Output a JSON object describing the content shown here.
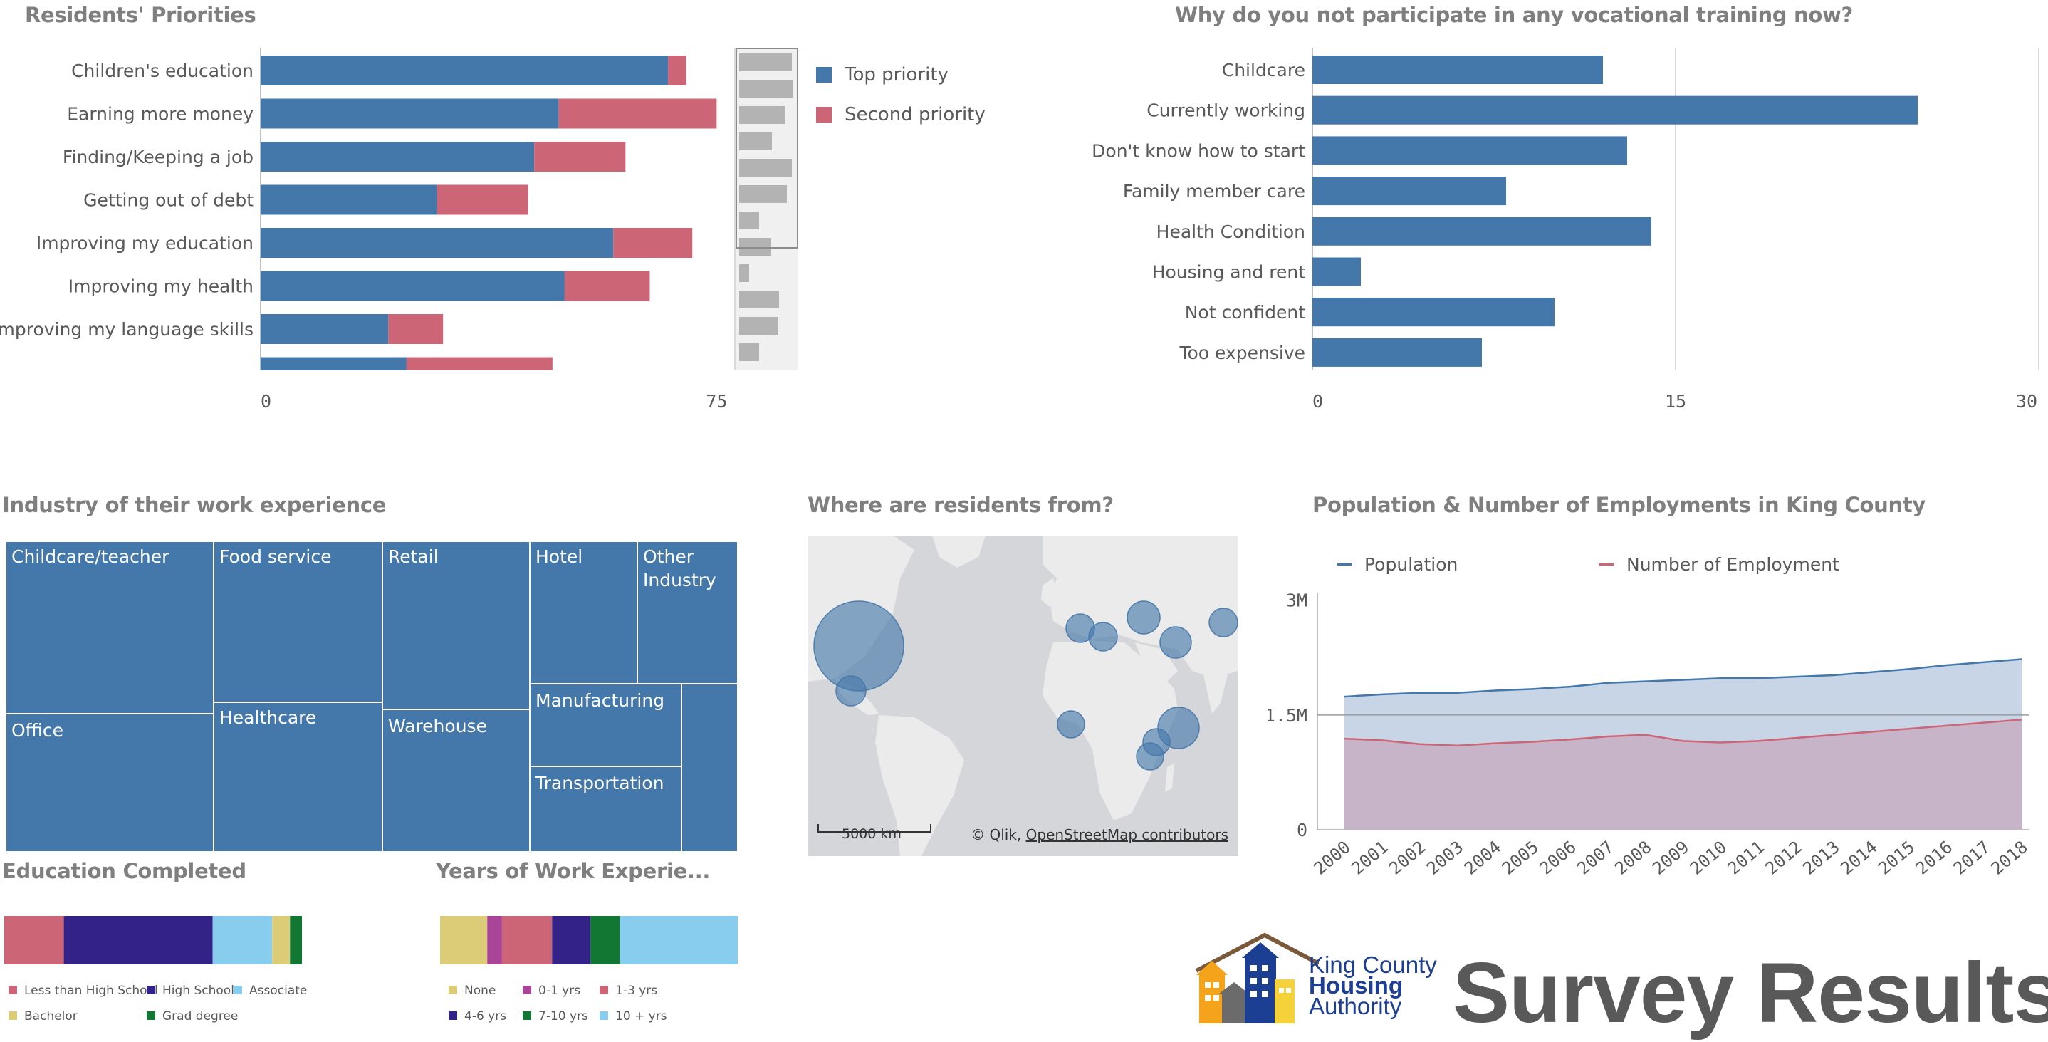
{
  "priorities": {
    "title": "Residents' Priorities",
    "legend": [
      "Top priority",
      "Second priority"
    ],
    "colors": {
      "top": "#4477aa",
      "second": "#cc6677"
    },
    "chart_data": {
      "type": "bar",
      "orientation": "horizontal",
      "stacked": true,
      "categories": [
        "Children's education",
        "Earning more money",
        "Finding/Keeping a job",
        "Getting out of debt",
        "Improving my education",
        "Improving my health",
        "Improving my language skills",
        ""
      ],
      "series": [
        {
          "name": "Top priority",
          "values": [
            67,
            49,
            45,
            29,
            58,
            50,
            21,
            24
          ]
        },
        {
          "name": "Second priority",
          "values": [
            3,
            26,
            15,
            15,
            13,
            14,
            9,
            24
          ]
        }
      ],
      "xticks": [
        "0",
        "75"
      ],
      "xlim": [
        0,
        78
      ],
      "grid": false,
      "legend_position": "right",
      "scrollbar_values": [
        74,
        76,
        64,
        46,
        74,
        67,
        28,
        45,
        14,
        56,
        55,
        28
      ]
    }
  },
  "vocational": {
    "title": "Why do you not participate in any vocational training now?",
    "color": "#4477aa",
    "chart_data": {
      "type": "bar",
      "orientation": "horizontal",
      "categories": [
        "Childcare",
        "Currently working",
        "Don't know how to start",
        "Family member care",
        "Health Condition",
        "Housing and rent",
        "Not confident",
        "Too expensive"
      ],
      "values": [
        12,
        25,
        13,
        8,
        14,
        2,
        10,
        7
      ],
      "xticks": [
        "0",
        "15",
        "30"
      ],
      "xlim": [
        0,
        30
      ],
      "grid": true
    }
  },
  "industry": {
    "title": "Industry of their work experience",
    "color": "#4477aa",
    "cells": [
      "Childcare/teacher",
      "Food service",
      "Retail",
      "Hotel",
      "Other Industry",
      "Office",
      "Healthcare",
      "Warehouse",
      "Manufacturing",
      "Transportation",
      ""
    ]
  },
  "map": {
    "title": "Where are residents from?",
    "scale": "5000 km",
    "attribution_prefix": "© Qlik,",
    "attribution_link": "OpenStreetMap contributors",
    "bubble_color": "#4477aa"
  },
  "population": {
    "title": "Population & Number of Employments in King County",
    "legend": [
      "Population",
      "Number of Employment"
    ],
    "colors": {
      "population": "#4477aa",
      "employment": "#cc6677"
    },
    "chart_data": {
      "type": "area",
      "x": [
        "2000",
        "2001",
        "2002",
        "2003",
        "2004",
        "2005",
        "2006",
        "2007",
        "2008",
        "2009",
        "2010",
        "2011",
        "2012",
        "2013",
        "2014",
        "2015",
        "2016",
        "2017",
        "2018"
      ],
      "series": [
        {
          "name": "Population",
          "values": [
            1.74,
            1.77,
            1.79,
            1.79,
            1.82,
            1.84,
            1.87,
            1.92,
            1.94,
            1.96,
            1.98,
            1.98,
            2.0,
            2.02,
            2.06,
            2.1,
            2.15,
            2.19,
            2.23
          ]
        },
        {
          "name": "Number of Employment",
          "values": [
            1.19,
            1.17,
            1.12,
            1.1,
            1.13,
            1.15,
            1.18,
            1.22,
            1.24,
            1.16,
            1.14,
            1.16,
            1.2,
            1.24,
            1.28,
            1.32,
            1.36,
            1.4,
            1.44
          ]
        }
      ],
      "yticks": [
        "0",
        "1.5M",
        "3M"
      ],
      "ylim": [
        0,
        3.1
      ],
      "unit": "M",
      "legend_position": "top"
    }
  },
  "education": {
    "title": "Education Completed",
    "chart_data": {
      "type": "bar",
      "stacked": true,
      "orientation": "horizontal",
      "series": [
        {
          "name": "Less than High School",
          "value": 20,
          "color": "#cc6677"
        },
        {
          "name": "High School",
          "value": 50,
          "color": "#332288"
        },
        {
          "name": "Associate",
          "value": 20,
          "color": "#88ccee"
        },
        {
          "name": "Bachelor",
          "value": 6,
          "color": "#ddcc77"
        },
        {
          "name": "Grad degree",
          "value": 4,
          "color": "#117733"
        }
      ]
    }
  },
  "experience": {
    "title": "Years of Work Experie...",
    "chart_data": {
      "type": "bar",
      "stacked": true,
      "orientation": "horizontal",
      "series": [
        {
          "name": "None",
          "value": 16,
          "color": "#ddcc77"
        },
        {
          "name": "0-1 yrs",
          "value": 5,
          "color": "#aa4499"
        },
        {
          "name": "1-3 yrs",
          "value": 17,
          "color": "#cc6677"
        },
        {
          "name": "4-6 yrs",
          "value": 13,
          "color": "#332288"
        },
        {
          "name": "7-10 yrs",
          "value": 10,
          "color": "#117733"
        },
        {
          "name": "10 + yrs",
          "value": 40,
          "color": "#88ccee"
        }
      ]
    }
  },
  "branding": {
    "logo_line1": "King County",
    "logo_line2": "Housing",
    "logo_line3": "Authority",
    "headline": "Survey Results"
  }
}
